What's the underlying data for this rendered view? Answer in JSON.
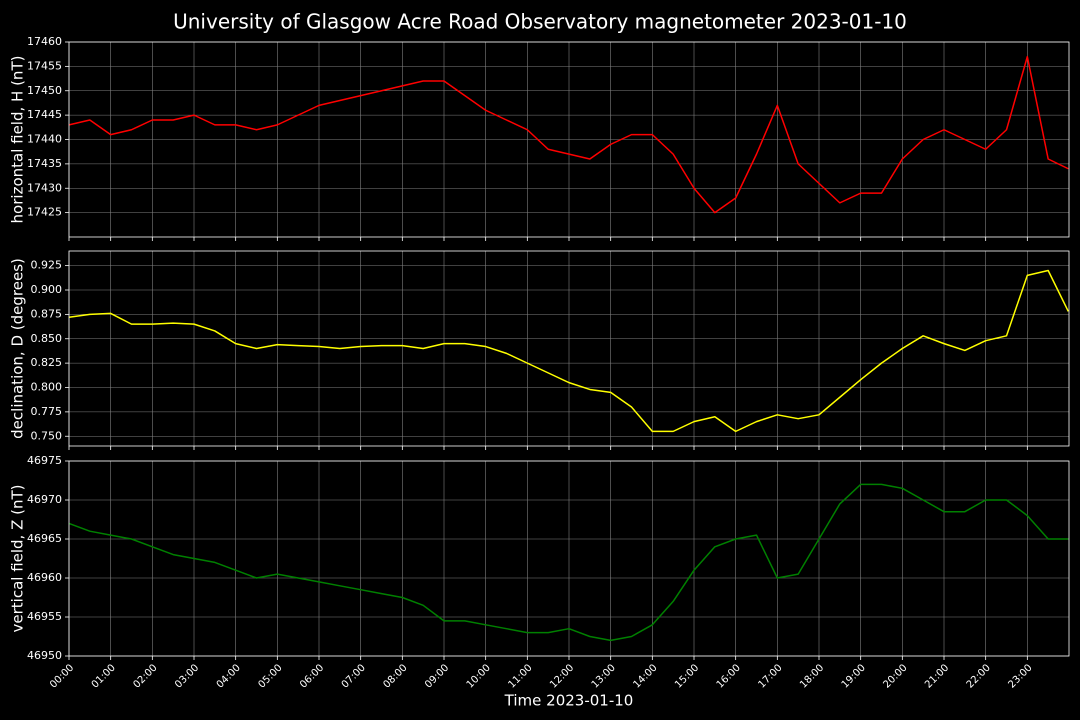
{
  "title": "University of Glasgow Acre Road Observatory magnetometer 2023-01-10",
  "chart_data": [
    {
      "type": "line",
      "ylabel": "horizontal field, H (nT)",
      "color": "#ff0000",
      "grid": true,
      "xlim": [
        "00:00",
        "24:00"
      ],
      "ylim": [
        17420,
        17460
      ],
      "yticks": [
        17425,
        17430,
        17435,
        17440,
        17445,
        17450,
        17455,
        17460
      ],
      "x": [
        "00:00",
        "00:30",
        "01:00",
        "01:30",
        "02:00",
        "02:30",
        "03:00",
        "03:30",
        "04:00",
        "04:30",
        "05:00",
        "05:30",
        "06:00",
        "06:30",
        "07:00",
        "07:30",
        "08:00",
        "08:30",
        "09:00",
        "09:30",
        "10:00",
        "10:30",
        "11:00",
        "11:30",
        "12:00",
        "12:30",
        "13:00",
        "13:30",
        "14:00",
        "14:30",
        "15:00",
        "15:30",
        "16:00",
        "16:30",
        "17:00",
        "17:30",
        "18:00",
        "18:30",
        "19:00",
        "19:30",
        "20:00",
        "20:30",
        "21:00",
        "21:30",
        "22:00",
        "22:30",
        "23:00",
        "23:30",
        "23:59"
      ],
      "values": [
        17443,
        17444,
        17441,
        17442,
        17444,
        17444,
        17445,
        17443,
        17443,
        17442,
        17443,
        17445,
        17447,
        17448,
        17449,
        17450,
        17451,
        17452,
        17452,
        17449,
        17446,
        17444,
        17442,
        17438,
        17437,
        17436,
        17439,
        17441,
        17441,
        17437,
        17430,
        17425,
        17428,
        17437,
        17447,
        17435,
        17431,
        17427,
        17429,
        17429,
        17436,
        17440,
        17442,
        17440,
        17438,
        17442,
        17457,
        17436,
        17434
      ]
    },
    {
      "type": "line",
      "ylabel": "declination, D (degrees)",
      "color": "#ffff00",
      "grid": true,
      "xlim": [
        "00:00",
        "24:00"
      ],
      "ylim": [
        0.74,
        0.94
      ],
      "yticks": [
        {
          "value": 0.75,
          "label": "0.750"
        },
        {
          "value": 0.775,
          "label": "0.775"
        },
        {
          "value": 0.8,
          "label": "0.800"
        },
        {
          "value": 0.825,
          "label": "0.825"
        },
        {
          "value": 0.85,
          "label": "0.850"
        },
        {
          "value": 0.875,
          "label": "0.875"
        },
        {
          "value": 0.9,
          "label": "0.900"
        },
        {
          "value": 0.925,
          "label": "0.925"
        }
      ],
      "x": [
        "00:00",
        "00:30",
        "01:00",
        "01:30",
        "02:00",
        "02:30",
        "03:00",
        "03:30",
        "04:00",
        "04:30",
        "05:00",
        "05:30",
        "06:00",
        "06:30",
        "07:00",
        "07:30",
        "08:00",
        "08:30",
        "09:00",
        "09:30",
        "10:00",
        "10:30",
        "11:00",
        "11:30",
        "12:00",
        "12:30",
        "13:00",
        "13:30",
        "14:00",
        "14:30",
        "15:00",
        "15:30",
        "16:00",
        "16:30",
        "17:00",
        "17:30",
        "18:00",
        "18:30",
        "19:00",
        "19:30",
        "20:00",
        "20:30",
        "21:00",
        "21:30",
        "22:00",
        "22:30",
        "23:00",
        "23:30",
        "23:59"
      ],
      "values": [
        0.872,
        0.875,
        0.876,
        0.865,
        0.865,
        0.866,
        0.865,
        0.858,
        0.845,
        0.84,
        0.844,
        0.843,
        0.842,
        0.84,
        0.842,
        0.843,
        0.843,
        0.84,
        0.845,
        0.845,
        0.842,
        0.835,
        0.825,
        0.815,
        0.805,
        0.798,
        0.795,
        0.78,
        0.755,
        0.755,
        0.765,
        0.77,
        0.755,
        0.765,
        0.772,
        0.768,
        0.772,
        0.79,
        0.808,
        0.825,
        0.84,
        0.853,
        0.845,
        0.838,
        0.848,
        0.853,
        0.915,
        0.92,
        0.878
      ]
    },
    {
      "type": "line",
      "ylabel": "vertical field, Z (nT)",
      "xlabel": "Time 2023-01-10",
      "color": "#008000",
      "grid": true,
      "xlim": [
        "00:00",
        "24:00"
      ],
      "ylim": [
        46950,
        46975
      ],
      "yticks": [
        46950,
        46955,
        46960,
        46965,
        46970,
        46975
      ],
      "xticks": [
        "00:00",
        "01:00",
        "02:00",
        "03:00",
        "04:00",
        "05:00",
        "06:00",
        "07:00",
        "08:00",
        "09:00",
        "10:00",
        "11:00",
        "12:00",
        "13:00",
        "14:00",
        "15:00",
        "16:00",
        "17:00",
        "18:00",
        "19:00",
        "20:00",
        "21:00",
        "22:00",
        "23:00"
      ],
      "x": [
        "00:00",
        "00:30",
        "01:00",
        "01:30",
        "02:00",
        "02:30",
        "03:00",
        "03:30",
        "04:00",
        "04:30",
        "05:00",
        "05:30",
        "06:00",
        "06:30",
        "07:00",
        "07:30",
        "08:00",
        "08:30",
        "09:00",
        "09:30",
        "10:00",
        "10:30",
        "11:00",
        "11:30",
        "12:00",
        "12:30",
        "13:00",
        "13:30",
        "14:00",
        "14:30",
        "15:00",
        "15:30",
        "16:00",
        "16:30",
        "17:00",
        "17:30",
        "18:00",
        "18:30",
        "19:00",
        "19:30",
        "20:00",
        "20:30",
        "21:00",
        "21:30",
        "22:00",
        "22:30",
        "23:00",
        "23:30",
        "23:59"
      ],
      "values": [
        46967,
        46966,
        46965.5,
        46965,
        46964,
        46963,
        46962.5,
        46962,
        46961,
        46960,
        46960.5,
        46960,
        46959.5,
        46959,
        46958.5,
        46958,
        46957.5,
        46956.5,
        46954.5,
        46954.5,
        46954,
        46953.5,
        46953,
        46953,
        46953.5,
        46952.5,
        46952,
        46952.5,
        46954,
        46957,
        46961,
        46964,
        46965,
        46965.5,
        46960,
        46960.5,
        46965,
        46969.5,
        46972,
        46972,
        46971.5,
        46970,
        46968.5,
        46968.5,
        46970,
        46970,
        46968,
        46965,
        46965
      ]
    }
  ]
}
